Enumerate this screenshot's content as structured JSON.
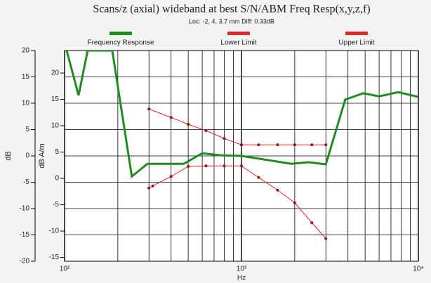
{
  "chart_data": {
    "type": "line",
    "title": "Scans/z (axial) wideband at best S/N/ABM Freq Resp(x,y,z,f)",
    "subtitle": "Loc: -2, 4, 3.7 mm Diff: 0.33dB",
    "x_label": "Hz",
    "y_label": "dB",
    "y2_label": "dB A/m",
    "xscale": "log",
    "xlim": [
      100,
      10000
    ],
    "xticks": [
      {
        "value": 100,
        "label": "10²"
      },
      {
        "value": 1000,
        "label": "10³"
      },
      {
        "value": 10000,
        "label": "10⁴"
      }
    ],
    "xminorticks": [
      200,
      300,
      400,
      500,
      600,
      700,
      800,
      900,
      2000,
      3000,
      4000,
      5000,
      6000,
      7000,
      8000,
      9000
    ],
    "ylim": [
      -20,
      20
    ],
    "yticks": [
      20,
      15,
      10,
      5,
      0,
      -5,
      -10,
      -15,
      -20
    ],
    "y2lim": [
      -15.73,
      24.27
    ],
    "y2ticks": [
      20,
      15,
      10,
      5,
      0,
      -5,
      -10,
      -15
    ],
    "grid": true,
    "legend": "top",
    "series": [
      {
        "name": "Frequency Response",
        "color": "#1e8c1e",
        "markers": false,
        "x": [
          102.8,
          120,
          135,
          186,
          240,
          294,
          472,
          600,
          770,
          1000,
          1910,
          2400,
          3000,
          3860,
          4890,
          6000,
          7700,
          10000
        ],
        "values": [
          20,
          11.5,
          20,
          20,
          -3.9,
          -1.5,
          -1.5,
          0.5,
          0.1,
          0,
          -1.5,
          -1.2,
          -1.6,
          10.7,
          11.9,
          11.3,
          12.1,
          11.2
        ]
      },
      {
        "name": "Lower Limit",
        "color": "#e02828",
        "markers": true,
        "x": [
          300,
          315,
          400,
          500,
          630,
          800,
          1000,
          1250,
          1600,
          2000,
          2500,
          3000
        ],
        "values": [
          -6.1,
          -5.7,
          -3.9,
          -2,
          -1.9,
          -1.9,
          -1.9,
          -4.1,
          -6.5,
          -8.9,
          -12.7,
          -15.7
        ]
      },
      {
        "name": "Upper Limit",
        "color": "#e02828",
        "markers": true,
        "x": [
          300,
          400,
          500,
          630,
          800,
          1000,
          1250,
          1600,
          2000,
          2500,
          3000
        ],
        "values": [
          8.9,
          7.3,
          6,
          4.8,
          3.3,
          2.1,
          2.1,
          2.1,
          2.1,
          2.1,
          2.1
        ]
      }
    ]
  }
}
